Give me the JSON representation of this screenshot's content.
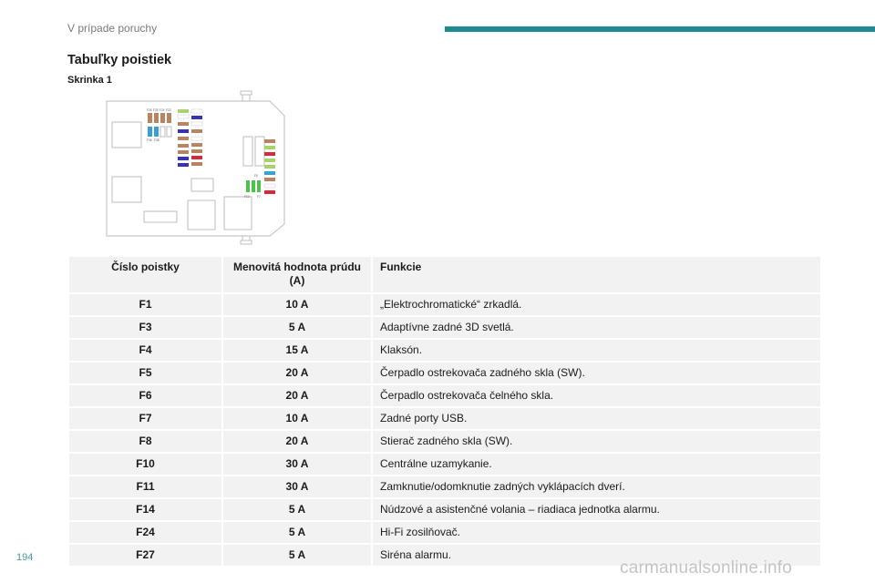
{
  "header": {
    "section": "V prípade poruchy",
    "accent_color": "#1f8a94"
  },
  "title": "Tabuľky poistiek",
  "subtitle": "Skrinka 1",
  "diagram": {
    "labels": [
      "F26",
      "F25",
      "F24",
      "F23",
      "F36",
      "F38",
      "F8",
      "F10",
      "F7"
    ]
  },
  "table": {
    "headers": [
      "Číslo poistky",
      "Menovitá hodnota prúdu (A)",
      "Funkcie"
    ],
    "rows": [
      {
        "fuse": "F1",
        "amp": "10 A",
        "func": "„Elektrochromatické“ zrkadlá."
      },
      {
        "fuse": "F3",
        "amp": "5 A",
        "func": "Adaptívne zadné 3D svetlá."
      },
      {
        "fuse": "F4",
        "amp": "15 A",
        "func": "Klaksón."
      },
      {
        "fuse": "F5",
        "amp": "20 A",
        "func": "Čerpadlo ostrekovača zadného skla (SW)."
      },
      {
        "fuse": "F6",
        "amp": "20 A",
        "func": "Čerpadlo ostrekovača čelného skla."
      },
      {
        "fuse": "F7",
        "amp": "10 A",
        "func": "Zadné porty USB."
      },
      {
        "fuse": "F8",
        "amp": "20 A",
        "func": "Stierač zadného skla (SW)."
      },
      {
        "fuse": "F10",
        "amp": "30 A",
        "func": "Centrálne uzamykanie."
      },
      {
        "fuse": "F11",
        "amp": "30 A",
        "func": "Zamknutie/odomknutie zadných vyklápacích dverí."
      },
      {
        "fuse": "F14",
        "amp": "5 A",
        "func": "Núdzové a asistenčné volania – riadiaca jednotka alarmu."
      },
      {
        "fuse": "F24",
        "amp": "5 A",
        "func": "Hi-Fi zosilňovač."
      },
      {
        "fuse": "F27",
        "amp": "5 A",
        "func": "Siréna alarmu."
      }
    ]
  },
  "footer": {
    "page_number": "194",
    "watermark": "carmanualsonline.info"
  }
}
